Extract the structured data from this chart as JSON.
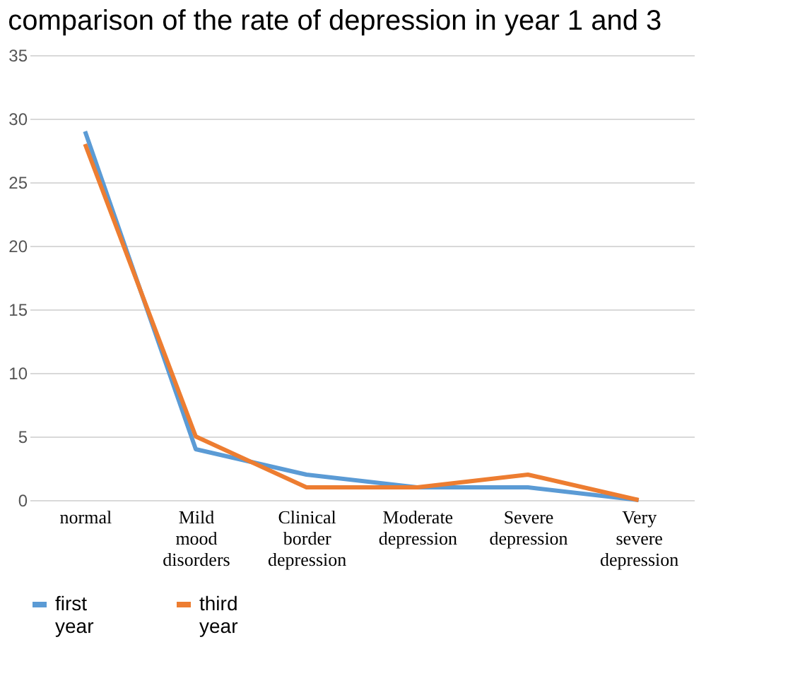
{
  "chart_data": {
    "type": "line",
    "title": "comparison of the rate of depression in year 1 and 3",
    "categories": [
      "normal",
      "Mild mood disorders",
      "Clinical border depression",
      "Moderate depression",
      "Severe depression",
      "Very severe depression"
    ],
    "series": [
      {
        "name": "first year",
        "color": "#5b9bd5",
        "values": [
          29,
          4,
          2,
          1,
          1,
          0
        ]
      },
      {
        "name": "third year",
        "color": "#ed7d31",
        "values": [
          28,
          5,
          1,
          1,
          2,
          0
        ]
      }
    ],
    "ylim": [
      0,
      35
    ],
    "yticks": [
      0,
      5,
      10,
      15,
      20,
      25,
      30,
      35
    ],
    "grid": "y",
    "legend": "bottom",
    "marker": "none",
    "line_style": "solid"
  }
}
